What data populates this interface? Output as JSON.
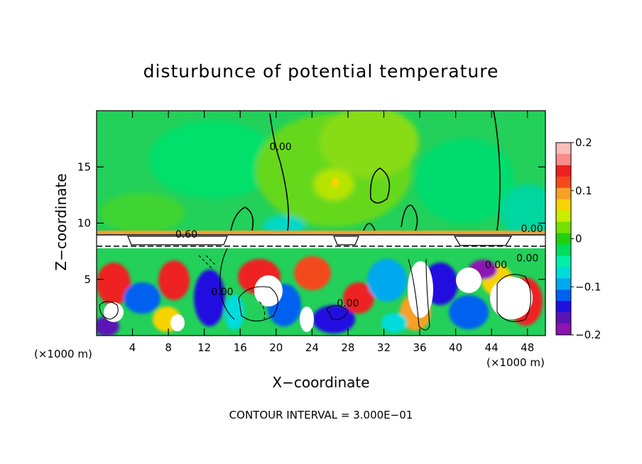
{
  "chart_data": {
    "type": "heatmap",
    "title": "disturbunce of potential temperature",
    "xlabel": "X−coordinate",
    "ylabel": "Z−coordinate",
    "x_unit": "(×1000 m)",
    "x_unit_right": "(×1000 m)",
    "contour_interval_text": "CONTOUR INTERVAL = 3.000E−01",
    "x_ticks": [
      4,
      8,
      12,
      16,
      20,
      24,
      28,
      32,
      36,
      40,
      44,
      48
    ],
    "y_ticks": [
      5,
      10,
      15
    ],
    "xlim": [
      0,
      50
    ],
    "ylim": [
      0,
      20
    ],
    "colorbar": {
      "ticks": [
        "0.2",
        "0.1",
        "0",
        "−0.1",
        "−0.2"
      ],
      "range": [
        -0.2,
        0.2
      ],
      "colors": [
        "#fbbcbc",
        "#f78c8c",
        "#ee2020",
        "#f44a1a",
        "#f7a028",
        "#f7d400",
        "#c8ee00",
        "#78e000",
        "#22d010",
        "#00dc5a",
        "#00f0a8",
        "#00dcdc",
        "#00a8f0",
        "#0060f0",
        "#2010e0",
        "#5a14b4",
        "#8c14b0"
      ]
    },
    "contour_labels": [
      {
        "text": "0.00",
        "x": 20.5,
        "y": 16.5
      },
      {
        "text": "0.00",
        "x": 48.5,
        "y": 9.2
      },
      {
        "text": "0.00",
        "x": 48,
        "y": 6.6
      },
      {
        "text": "0.00",
        "x": 44.5,
        "y": 6.0
      },
      {
        "text": "0.00",
        "x": 14,
        "y": 3.6
      },
      {
        "text": "0.00",
        "x": 28,
        "y": 2.6
      },
      {
        "text": "0.60",
        "x": 10,
        "y": 8.7
      }
    ],
    "grid": false,
    "legend": "colorbar-right"
  }
}
